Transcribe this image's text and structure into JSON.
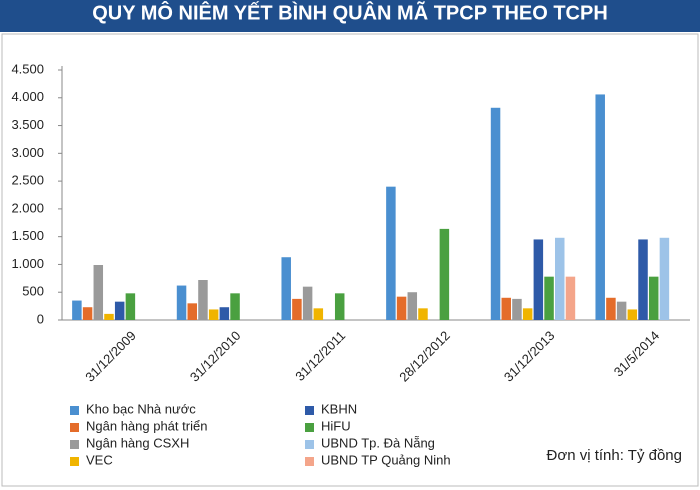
{
  "chart_data": {
    "type": "bar",
    "title": "QUY MÔ NIÊM YẾT BÌNH QUÂN MÃ TPCP THEO TCPH",
    "note": "Đơn vị tính: Tỷ đồng",
    "categories": [
      "31/12/2009",
      "31/12/2010",
      "31/12/2011",
      "28/12/2012",
      "31/12/2013",
      "31/5/2014"
    ],
    "series": [
      {
        "name": "Kho bạc Nhà nước",
        "color": "#4a8fd0",
        "values": [
          350,
          620,
          1130,
          2400,
          3820,
          4060
        ]
      },
      {
        "name": "Ngân hàng phát triển",
        "color": "#e46c2a",
        "values": [
          230,
          300,
          380,
          420,
          400,
          400
        ]
      },
      {
        "name": "Ngân hàng CSXH",
        "color": "#9a9a9a",
        "values": [
          990,
          720,
          600,
          500,
          380,
          330
        ]
      },
      {
        "name": "VEC",
        "color": "#f0b400",
        "values": [
          110,
          190,
          210,
          210,
          210,
          190
        ]
      },
      {
        "name": "KBHN",
        "color": "#2e5aa8",
        "values": [
          330,
          230,
          null,
          null,
          1450,
          1450
        ]
      },
      {
        "name": "HiFU",
        "color": "#4aa040",
        "values": [
          480,
          480,
          480,
          1640,
          780,
          780
        ]
      },
      {
        "name": "UBND Tp. Đà Nẵng",
        "color": "#9dc3e8",
        "values": [
          null,
          null,
          null,
          null,
          1480,
          1480
        ]
      },
      {
        "name": "UBND TP Quảng Ninh",
        "color": "#f4a58a",
        "values": [
          null,
          null,
          null,
          null,
          780,
          null
        ]
      }
    ],
    "ylim": [
      0,
      4500
    ],
    "yticks": [
      0,
      500,
      {
        "value": 1000,
        "label": "1.000"
      },
      {
        "value": 1500,
        "label": "1.500"
      },
      {
        "value": 2000,
        "label": "2.000"
      },
      {
        "value": 2500,
        "label": "2.500"
      },
      {
        "value": 3000,
        "label": "3.000"
      },
      {
        "value": 3500,
        "label": "3.500"
      },
      {
        "value": 4000,
        "label": "4.000"
      },
      {
        "value": 4500,
        "label": "4.500"
      }
    ],
    "grid": false
  }
}
